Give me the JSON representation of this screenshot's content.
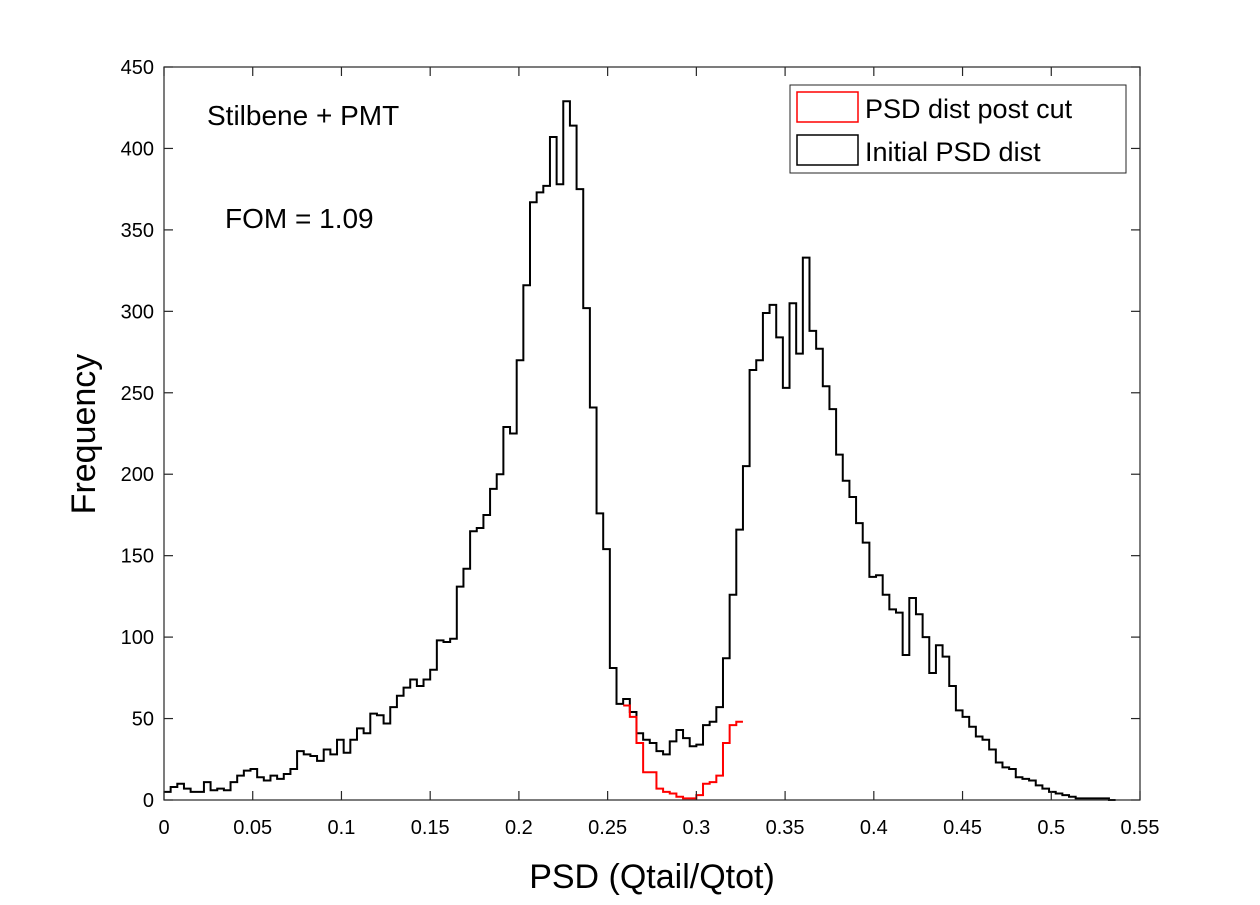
{
  "chart_data": {
    "type": "histogram",
    "title": "",
    "xlabel": "PSD (Qtail/Qtot)",
    "ylabel": "Frequency",
    "xlim": [
      0,
      0.55
    ],
    "ylim": [
      0,
      450
    ],
    "xticks": [
      0,
      0.05,
      0.1,
      0.15,
      0.2,
      0.25,
      0.3,
      0.35,
      0.4,
      0.45,
      0.5,
      0.55
    ],
    "xtick_labels": [
      "0",
      "0.05",
      "0.1",
      "0.15",
      "0.2",
      "0.25",
      "0.3",
      "0.35",
      "0.4",
      "0.45",
      "0.5",
      "0.55"
    ],
    "yticks": [
      0,
      50,
      100,
      150,
      200,
      250,
      300,
      350,
      400,
      450
    ],
    "ytick_labels": [
      "0",
      "50",
      "100",
      "150",
      "200",
      "250",
      "300",
      "350",
      "400",
      "450"
    ],
    "grid": false,
    "bin_width": 0.00375,
    "annotations": [
      {
        "text": "Stilbene + PMT"
      },
      {
        "text": "FOM = 1.09"
      }
    ],
    "legend": {
      "position": "top-right",
      "entries": [
        {
          "label": "PSD dist post cut",
          "color": "#ff0000"
        },
        {
          "label": "Initial PSD dist",
          "color": "#000000"
        }
      ]
    },
    "series": [
      {
        "name": "Initial PSD dist",
        "color": "#000000",
        "x_start": 0.0,
        "values": [
          5,
          8,
          10,
          7,
          5,
          5,
          11,
          6,
          7,
          6,
          11,
          15,
          18,
          19,
          14,
          12,
          15,
          13,
          16,
          19,
          30,
          28,
          27,
          24,
          31,
          28,
          37,
          29,
          37,
          44,
          41,
          53,
          52,
          47,
          57,
          64,
          69,
          74,
          70,
          74,
          80,
          98,
          97,
          99,
          131,
          142,
          165,
          167,
          175,
          191,
          200,
          229,
          225,
          270,
          316,
          367,
          373,
          377,
          407,
          378,
          429,
          414,
          375,
          302,
          241,
          176,
          154,
          81,
          59,
          62,
          54,
          41,
          37,
          35,
          30,
          28,
          36,
          43,
          38,
          33,
          34,
          46,
          48,
          57,
          87,
          126,
          166,
          205,
          264,
          270,
          299,
          304,
          284,
          253,
          305,
          274,
          333,
          288,
          277,
          254,
          240,
          212,
          196,
          186,
          170,
          158,
          137,
          138,
          126,
          117,
          115,
          89,
          124,
          114,
          100,
          78,
          95,
          88,
          70,
          55,
          51,
          45,
          39,
          37,
          31,
          23,
          20,
          19,
          14,
          13,
          12,
          9,
          7,
          5,
          4,
          3,
          2,
          1,
          1,
          1,
          1,
          1,
          0
        ]
      },
      {
        "name": "PSD dist post cut",
        "color": "#ff0000",
        "x_start": 0.25875,
        "values": [
          58,
          51,
          35,
          17,
          17,
          7,
          5,
          4,
          2,
          1,
          1,
          3,
          10,
          11,
          15,
          35,
          46,
          48
        ]
      }
    ]
  }
}
